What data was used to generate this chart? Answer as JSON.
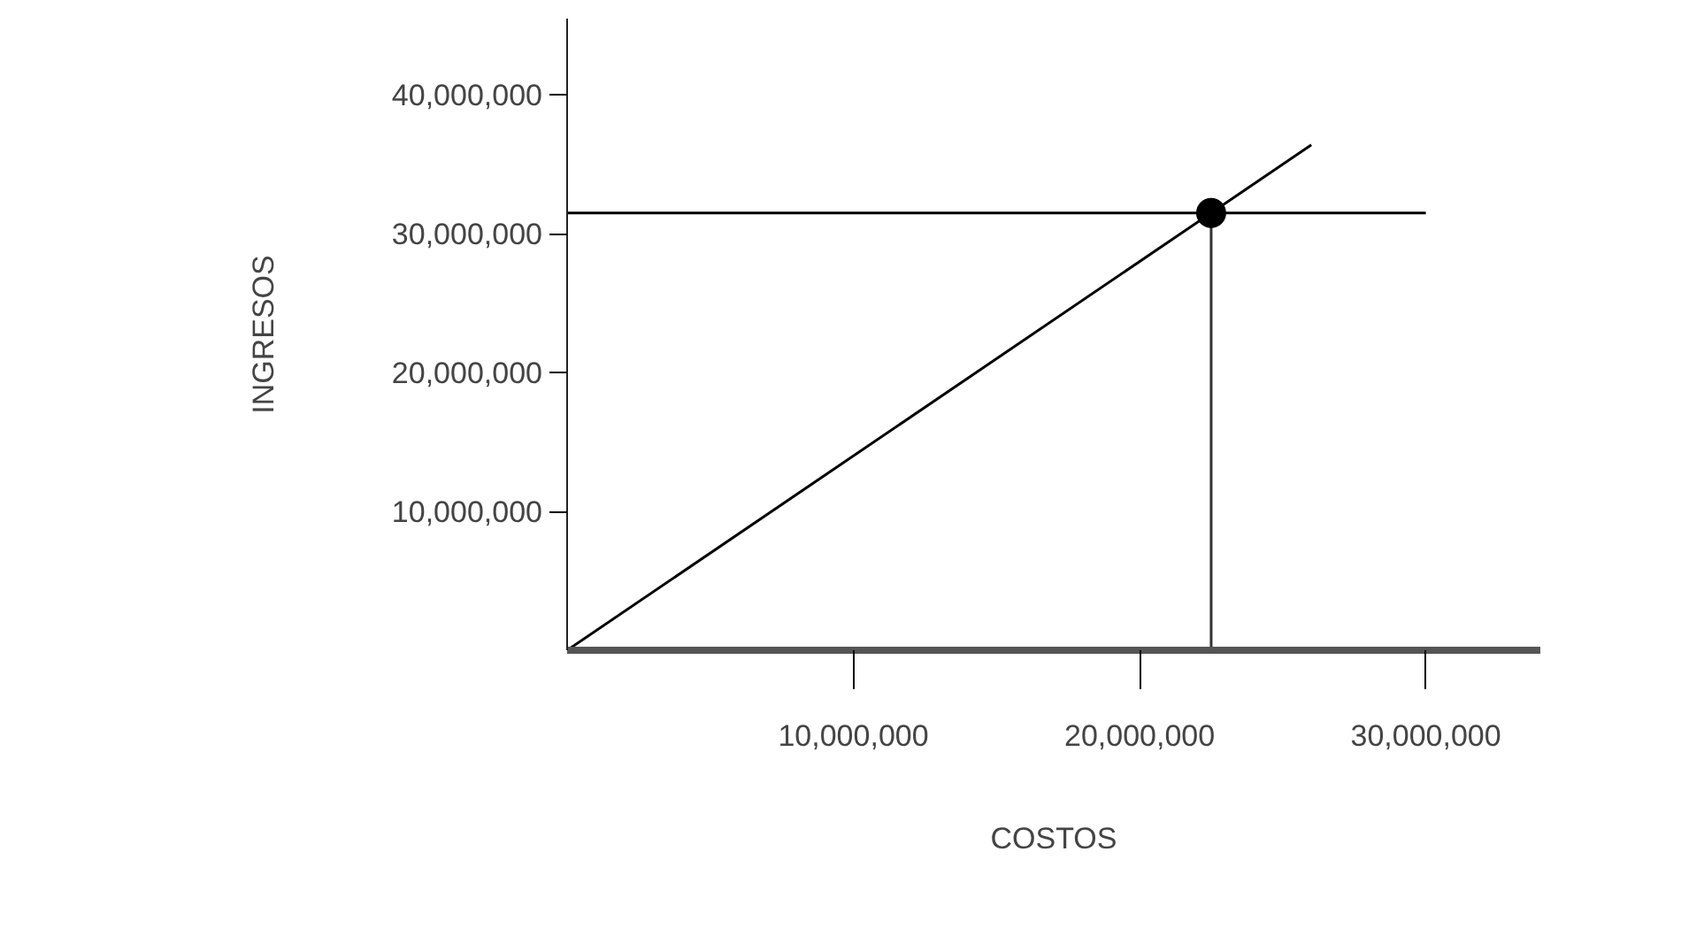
{
  "chart_data": {
    "type": "line",
    "xlabel": "COSTOS",
    "ylabel": "INGRESOS",
    "xlim": [
      0,
      34000000
    ],
    "ylim": [
      0,
      45500000
    ],
    "xticks": [
      {
        "value": 10000000,
        "label": "10,000,000"
      },
      {
        "value": 20000000,
        "label": "20,000,000"
      },
      {
        "value": 30000000,
        "label": "30,000,000"
      }
    ],
    "yticks": [
      {
        "value": 10000000,
        "label": "10,000,000"
      },
      {
        "value": 20000000,
        "label": "20,000,000"
      },
      {
        "value": 30000000,
        "label": "30,000,000"
      },
      {
        "value": 40000000,
        "label": "40,000,000"
      }
    ],
    "series": [
      {
        "color": "#000000",
        "x": [
          0,
          26000000
        ],
        "values": [
          0,
          36400000
        ]
      },
      {
        "color": "#000000",
        "x": [
          0,
          30000000
        ],
        "values": [
          31500000,
          31500000
        ]
      },
      {
        "color": "#333333",
        "x": [
          22500000,
          22500000
        ],
        "values": [
          31500000,
          0
        ]
      },
      {
        "type": "scatter",
        "color": "#000000",
        "x": [
          22500000
        ],
        "values": [
          31500000
        ]
      }
    ],
    "grid": false
  }
}
